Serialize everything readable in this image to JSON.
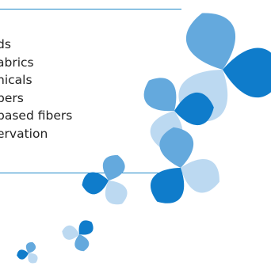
{
  "items": [
    "ds",
    "abrics",
    "nicals",
    "bers",
    "based fibers",
    "ervation"
  ],
  "colors": {
    "rule": "#1e88c8",
    "light": "#bcd9f1",
    "mid": "#64a9dd",
    "dark": "#0f7ccb"
  },
  "motif": "pinwheel-flower-decoration"
}
